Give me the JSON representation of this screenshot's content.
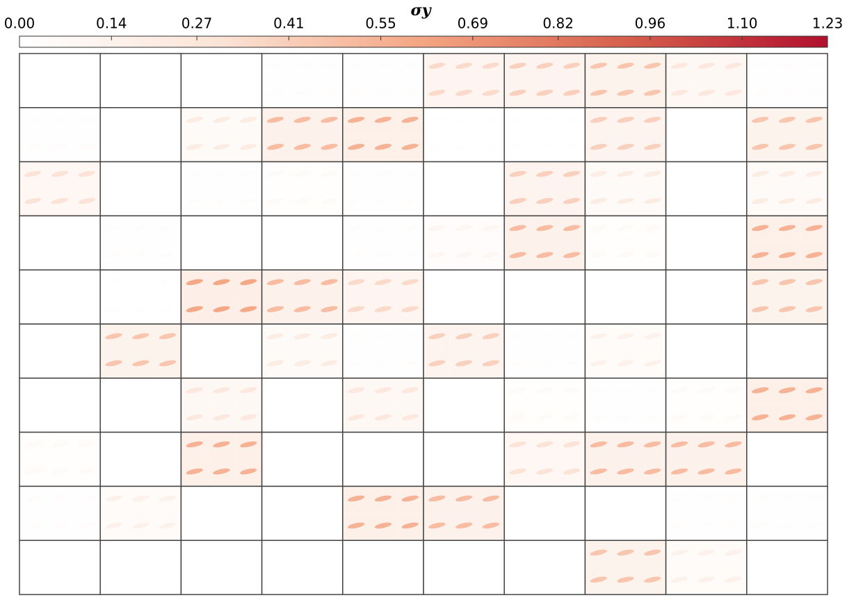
{
  "chart_data": {
    "type": "heatmap-grid",
    "colorbar_title": "σy",
    "clim": [
      0,
      1.23
    ],
    "cticks": [
      {
        "value": 0,
        "label": "0.00"
      },
      0.14,
      0.27,
      0.41,
      0.55,
      0.69,
      0.82,
      0.96,
      {
        "value": 1.1,
        "label": "1.10"
      },
      1.23
    ],
    "colormap": [
      "#ffffff",
      "#fbe3d6",
      "#f4a582",
      "#d6604d",
      "#b2102e"
    ],
    "values": [
      [
        0,
        0,
        0,
        0.02,
        0.02,
        0.35,
        0.4,
        0.45,
        0.25,
        0.03
      ],
      [
        0.03,
        0,
        0.2,
        0.5,
        0.55,
        0.01,
        0.01,
        0.4,
        0,
        0.45
      ],
      [
        0.3,
        0,
        0.02,
        0.05,
        0.02,
        0,
        0.4,
        0.2,
        0,
        0.2
      ],
      [
        0,
        0.02,
        0,
        0,
        0.02,
        0.1,
        0.5,
        0.05,
        0,
        0.55
      ],
      [
        0,
        0.01,
        0.6,
        0.5,
        0.35,
        0,
        0,
        0,
        0,
        0.45
      ],
      [
        0,
        0.45,
        0,
        0.2,
        0.02,
        0.4,
        0.02,
        0.15,
        0,
        0
      ],
      [
        0,
        0,
        0.25,
        0,
        0.25,
        0,
        0.05,
        0.02,
        0.05,
        0.55
      ],
      [
        0.05,
        0,
        0.55,
        0,
        0,
        0,
        0.3,
        0.5,
        0.5,
        0
      ],
      [
        0.03,
        0.15,
        0,
        0,
        0.55,
        0.5,
        0,
        0,
        0.02,
        0.02
      ],
      [
        0,
        0,
        0,
        0,
        0,
        0,
        0,
        0.45,
        0.15,
        0
      ]
    ]
  }
}
